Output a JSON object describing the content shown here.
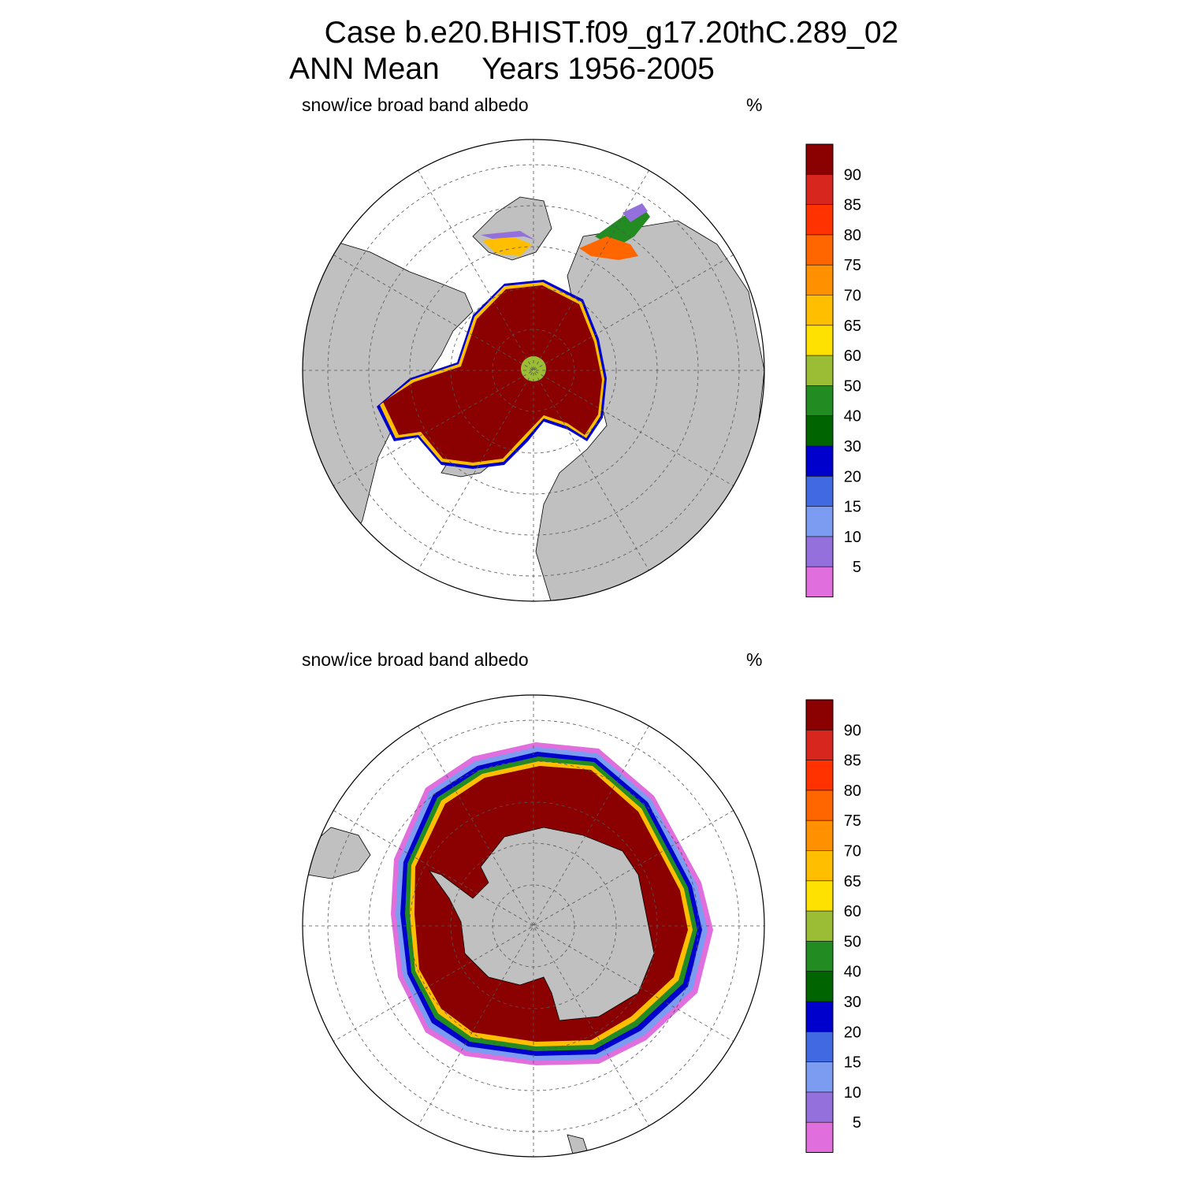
{
  "figure": {
    "title_case": "  Case b.e20.BHIST.f09_g17.20thC.289_02",
    "title_period": "ANN Mean     Years 1956-2005"
  },
  "panels": [
    {
      "id": "north",
      "hemisphere": "Northern",
      "variable": "snow/ice broad band albedo",
      "units": "%"
    },
    {
      "id": "south",
      "hemisphere": "Southern",
      "variable": "snow/ice broad band albedo",
      "units": "%"
    }
  ],
  "colorbar": {
    "labels": [
      "90",
      "85",
      "80",
      "75",
      "70",
      "65",
      "60",
      "50",
      "40",
      "30",
      "20",
      "15",
      "10",
      "5"
    ],
    "colors": [
      "#8b0000",
      "#d7261e",
      "#ff3200",
      "#ff6600",
      "#ff9000",
      "#ffbe00",
      "#ffe100",
      "#9bbd35",
      "#228b22",
      "#006400",
      "#0000cd",
      "#4169e1",
      "#7b9cf0",
      "#9370db",
      "#e06edc"
    ]
  },
  "colors": {
    "land": "#c0c0c0",
    "ocean": "#ffffff",
    "grid": "#555555"
  }
}
